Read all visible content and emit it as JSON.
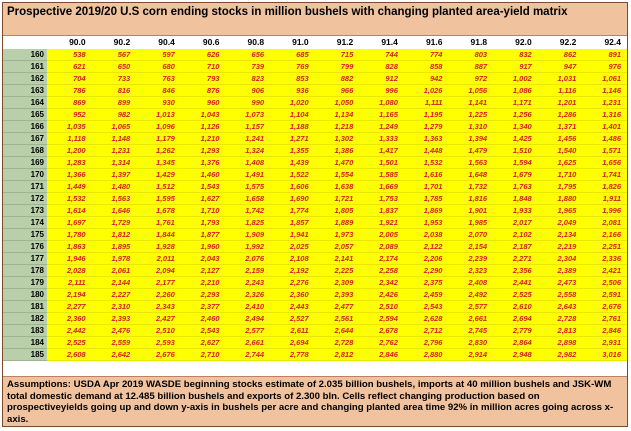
{
  "chart_data": {
    "type": "table",
    "title": "Prospective 2019/20 U.S  corn ending stocks in million bushels with changing planted area-yield matrix",
    "columns": [
      "90.0",
      "90.2",
      "90.4",
      "90.6",
      "90.8",
      "91.0",
      "91.2",
      "91.4",
      "91.6",
      "91.8",
      "92.0",
      "92.2",
      "92.4"
    ],
    "rows": [
      {
        "label": "160",
        "values": [
          "538",
          "567",
          "597",
          "626",
          "656",
          "685",
          "715",
          "744",
          "774",
          "803",
          "832",
          "862",
          "891"
        ]
      },
      {
        "label": "161",
        "values": [
          "621",
          "650",
          "680",
          "710",
          "739",
          "769",
          "799",
          "828",
          "858",
          "887",
          "917",
          "947",
          "976"
        ]
      },
      {
        "label": "162",
        "values": [
          "704",
          "733",
          "763",
          "793",
          "823",
          "853",
          "882",
          "912",
          "942",
          "972",
          "1,002",
          "1,031",
          "1,061"
        ]
      },
      {
        "label": "163",
        "values": [
          "786",
          "816",
          "846",
          "876",
          "906",
          "936",
          "966",
          "996",
          "1,026",
          "1,056",
          "1,086",
          "1,116",
          "1,146"
        ]
      },
      {
        "label": "164",
        "values": [
          "869",
          "899",
          "930",
          "960",
          "990",
          "1,020",
          "1,050",
          "1,080",
          "1,111",
          "1,141",
          "1,171",
          "1,201",
          "1,231"
        ]
      },
      {
        "label": "165",
        "values": [
          "952",
          "982",
          "1,013",
          "1,043",
          "1,073",
          "1,104",
          "1,134",
          "1,165",
          "1,195",
          "1,225",
          "1,256",
          "1,286",
          "1,316"
        ]
      },
      {
        "label": "166",
        "values": [
          "1,035",
          "1,065",
          "1,096",
          "1,126",
          "1,157",
          "1,188",
          "1,218",
          "1,249",
          "1,279",
          "1,310",
          "1,340",
          "1,371",
          "1,401"
        ]
      },
      {
        "label": "167",
        "values": [
          "1,118",
          "1,148",
          "1,179",
          "1,210",
          "1,241",
          "1,271",
          "1,302",
          "1,333",
          "1,363",
          "1,394",
          "1,425",
          "1,456",
          "1,486"
        ]
      },
      {
        "label": "168",
        "values": [
          "1,200",
          "1,231",
          "1,262",
          "1,293",
          "1,324",
          "1,355",
          "1,386",
          "1,417",
          "1,448",
          "1,479",
          "1,510",
          "1,540",
          "1,571"
        ]
      },
      {
        "label": "169",
        "values": [
          "1,283",
          "1,314",
          "1,345",
          "1,376",
          "1,408",
          "1,439",
          "1,470",
          "1,501",
          "1,532",
          "1,563",
          "1,594",
          "1,625",
          "1,656"
        ]
      },
      {
        "label": "170",
        "values": [
          "1,366",
          "1,397",
          "1,429",
          "1,460",
          "1,491",
          "1,522",
          "1,554",
          "1,585",
          "1,616",
          "1,648",
          "1,679",
          "1,710",
          "1,741"
        ]
      },
      {
        "label": "171",
        "values": [
          "1,449",
          "1,480",
          "1,512",
          "1,543",
          "1,575",
          "1,606",
          "1,638",
          "1,669",
          "1,701",
          "1,732",
          "1,763",
          "1,795",
          "1,826"
        ]
      },
      {
        "label": "172",
        "values": [
          "1,532",
          "1,563",
          "1,595",
          "1,627",
          "1,658",
          "1,690",
          "1,721",
          "1,753",
          "1,785",
          "1,816",
          "1,848",
          "1,880",
          "1,911"
        ]
      },
      {
        "label": "173",
        "values": [
          "1,614",
          "1,646",
          "1,678",
          "1,710",
          "1,742",
          "1,774",
          "1,805",
          "1,837",
          "1,869",
          "1,901",
          "1,933",
          "1,965",
          "1,996"
        ]
      },
      {
        "label": "174",
        "values": [
          "1,697",
          "1,729",
          "1,761",
          "1,793",
          "1,825",
          "1,857",
          "1,889",
          "1,921",
          "1,953",
          "1,985",
          "2,017",
          "2,049",
          "2,081"
        ]
      },
      {
        "label": "175",
        "values": [
          "1,780",
          "1,812",
          "1,844",
          "1,877",
          "1,909",
          "1,941",
          "1,973",
          "2,005",
          "2,038",
          "2,070",
          "2,102",
          "2,134",
          "2,166"
        ]
      },
      {
        "label": "176",
        "values": [
          "1,863",
          "1,895",
          "1,928",
          "1,960",
          "1,992",
          "2,025",
          "2,057",
          "2,089",
          "2,122",
          "2,154",
          "2,187",
          "2,219",
          "2,251"
        ]
      },
      {
        "label": "177",
        "values": [
          "1,946",
          "1,978",
          "2,011",
          "2,043",
          "2,076",
          "2,108",
          "2,141",
          "2,174",
          "2,206",
          "2,239",
          "2,271",
          "2,304",
          "2,336"
        ]
      },
      {
        "label": "178",
        "values": [
          "2,028",
          "2,061",
          "2,094",
          "2,127",
          "2,159",
          "2,192",
          "2,225",
          "2,258",
          "2,290",
          "2,323",
          "2,356",
          "2,389",
          "2,421"
        ]
      },
      {
        "label": "179",
        "values": [
          "2,111",
          "2,144",
          "2,177",
          "2,210",
          "2,243",
          "2,276",
          "2,309",
          "2,342",
          "2,375",
          "2,408",
          "2,441",
          "2,473",
          "2,506"
        ]
      },
      {
        "label": "180",
        "values": [
          "2,194",
          "2,227",
          "2,260",
          "2,293",
          "2,326",
          "2,360",
          "2,393",
          "2,426",
          "2,459",
          "2,492",
          "2,525",
          "2,558",
          "2,591"
        ]
      },
      {
        "label": "181",
        "values": [
          "2,277",
          "2,310",
          "2,343",
          "2,377",
          "2,410",
          "2,443",
          "2,477",
          "2,510",
          "2,543",
          "2,577",
          "2,610",
          "2,643",
          "2,676"
        ]
      },
      {
        "label": "182",
        "values": [
          "2,360",
          "2,393",
          "2,427",
          "2,460",
          "2,494",
          "2,527",
          "2,561",
          "2,594",
          "2,628",
          "2,661",
          "2,694",
          "2,728",
          "2,761"
        ]
      },
      {
        "label": "183",
        "values": [
          "2,442",
          "2,476",
          "2,510",
          "2,543",
          "2,577",
          "2,611",
          "2,644",
          "2,678",
          "2,712",
          "2,745",
          "2,779",
          "2,813",
          "2,846"
        ]
      },
      {
        "label": "184",
        "values": [
          "2,525",
          "2,559",
          "2,593",
          "2,627",
          "2,661",
          "2,694",
          "2,728",
          "2,762",
          "2,796",
          "2,830",
          "2,864",
          "2,898",
          "2,931"
        ]
      },
      {
        "label": "185",
        "values": [
          "2,608",
          "2,642",
          "2,676",
          "2,710",
          "2,744",
          "2,778",
          "2,812",
          "2,846",
          "2,880",
          "2,914",
          "2,948",
          "2,982",
          "3,016"
        ]
      }
    ],
    "notes": "Assumptions:  USDA Apr 2019  WASDE   beginning stocks estimate of 2.035 billion bushels, imports at 40 million bushels and JSK-WM total domestic demand at 12.485  billion bushels and exports of 2.300 bln. Cells reflect changing production based on prospectiveyields going up and down y-axis in bushels per acre and changing planted area time 92% in million acres going across x-axis."
  }
}
